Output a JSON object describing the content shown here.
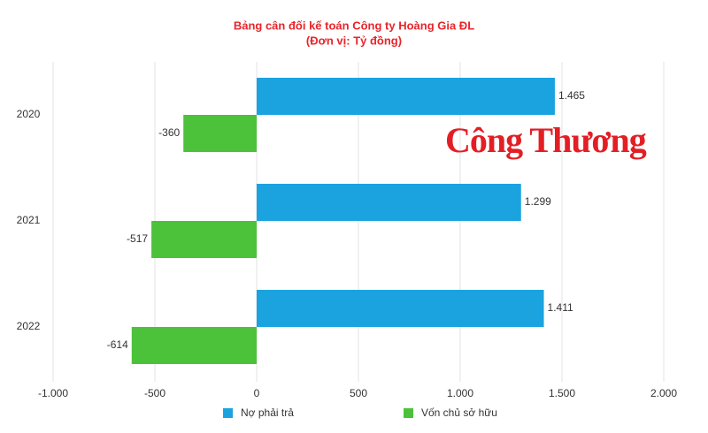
{
  "chart_data": {
    "type": "hbar",
    "title": "Bảng cân đối kế toán Công ty Hoàng Gia ĐL",
    "subtitle": "(Đơn vị: Tỷ đồng)",
    "watermark": "Công Thương",
    "categories": [
      "2020",
      "2021",
      "2022"
    ],
    "series": [
      {
        "name": "Nợ phải trả",
        "color": "#1ba3e0",
        "values": [
          1465,
          1299,
          1411
        ],
        "value_labels": [
          "1.465",
          "1.299",
          "1.411"
        ]
      },
      {
        "name": "Vốn chủ sở hữu",
        "color": "#4cc23a",
        "values": [
          -360,
          -517,
          -614
        ],
        "value_labels": [
          "-360",
          "-517",
          "-614"
        ]
      }
    ],
    "xlim": [
      -1000,
      2000
    ],
    "xticks": [
      {
        "value": -1000,
        "label": "-1.000"
      },
      -500,
      0,
      500,
      {
        "value": 1000,
        "label": "1.000"
      },
      {
        "value": 1500,
        "label": "1.500"
      },
      {
        "value": 2000,
        "label": "2.000"
      }
    ],
    "grid": true,
    "legend": "bottom"
  }
}
